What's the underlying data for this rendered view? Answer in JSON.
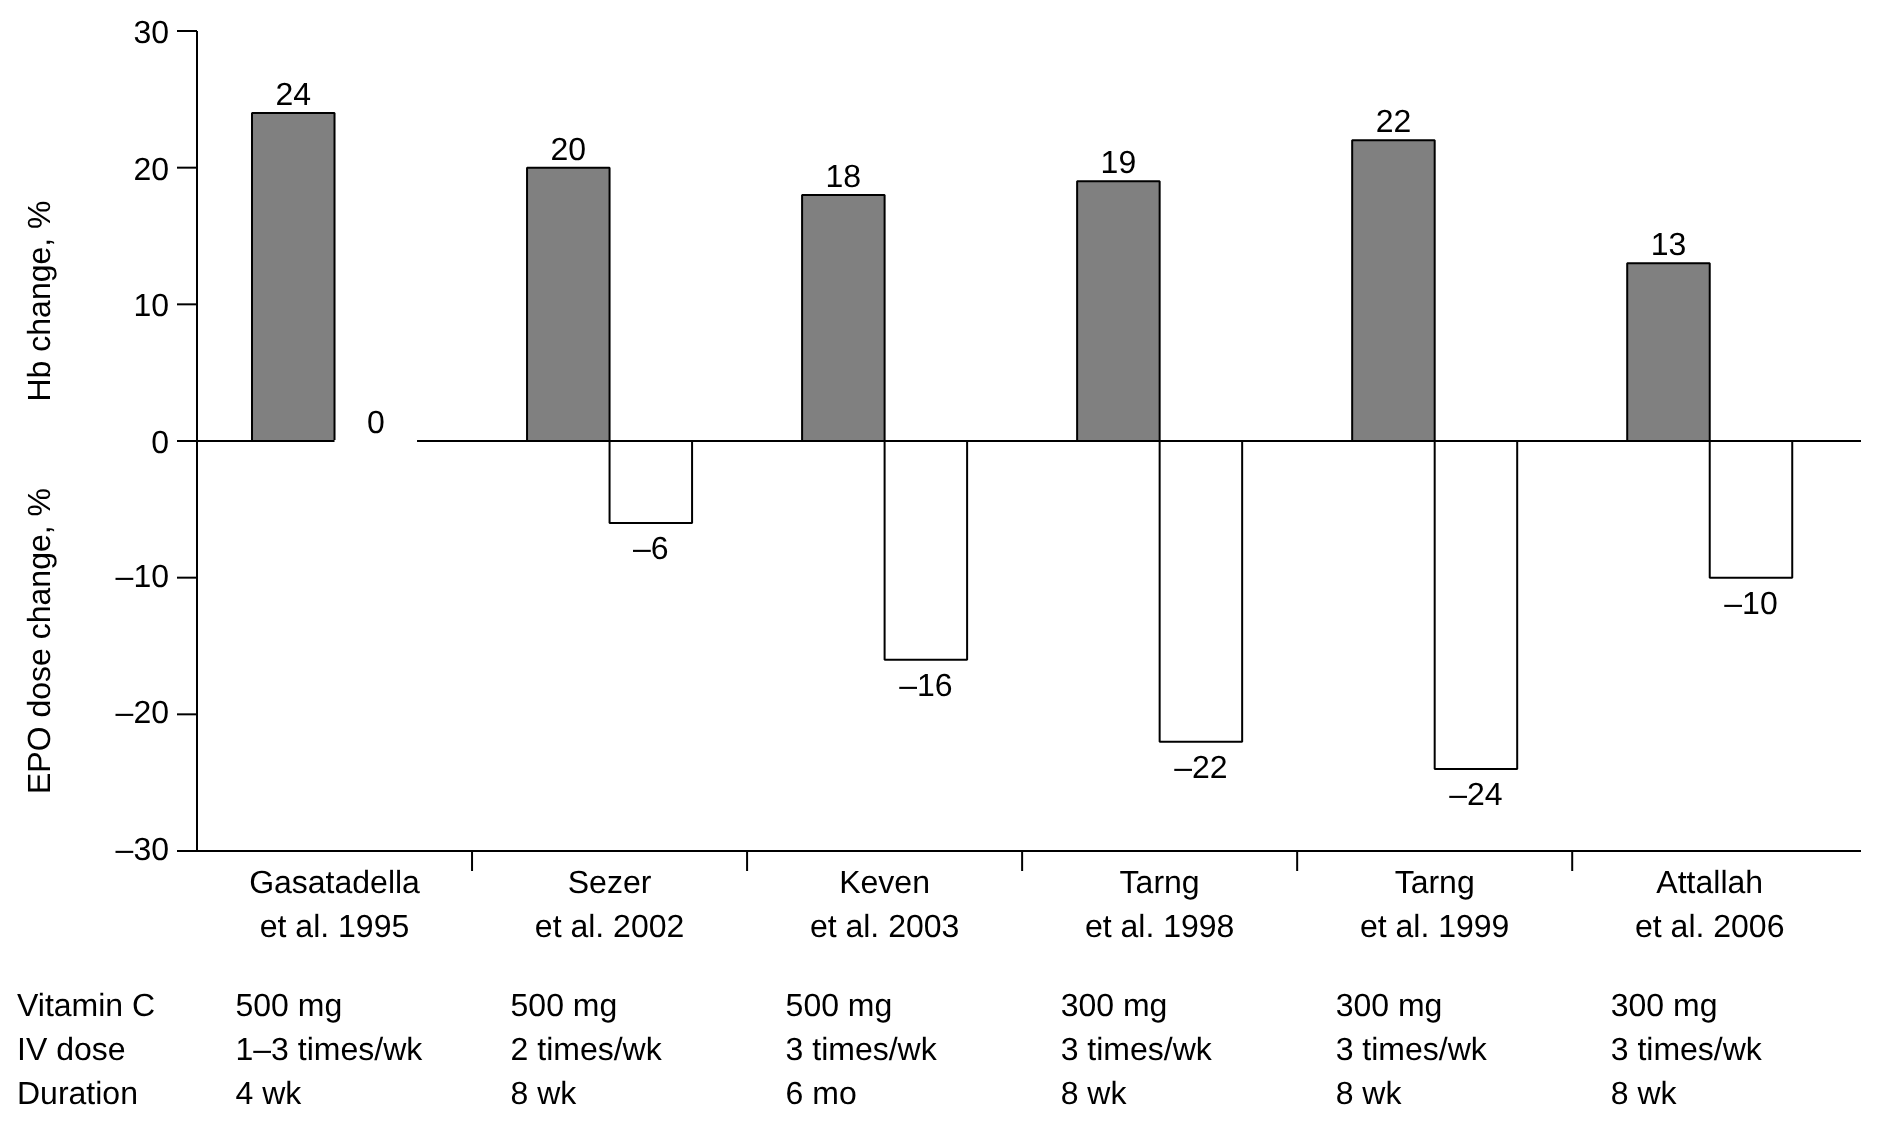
{
  "chart_data": {
    "type": "bar",
    "ylabel": "Hb change, %",
    "categories": [
      "Gasatadella\net al. 1995",
      "Sezer\net al. 2002",
      "Keven\net al. 2003",
      "Tarng\net al. 1998",
      "Tarng\net al. 1999",
      "Attallah\net al. 2006"
    ],
    "series": [
      {
        "color": "#808080",
        "values": [
          24,
          20,
          18,
          19,
          22,
          13
        ],
        "value_labels": [
          "24",
          "20",
          "18",
          "19",
          "22",
          "13"
        ]
      },
      {
        "color": "#ffffff",
        "values": [
          0,
          -6,
          -16,
          -22,
          -24,
          -10
        ],
        "value_labels": [
          "0",
          "–6",
          "–16",
          "–22",
          "–24",
          "–10"
        ]
      }
    ],
    "ylim": [
      -30,
      30
    ],
    "yticks": [
      {
        "value": -30,
        "label": "–30"
      },
      {
        "value": -20,
        "label": "–20"
      },
      {
        "value": -10,
        "label": "–10"
      },
      0,
      10,
      20,
      30
    ],
    "grid": false,
    "ref_lines": [
      {
        "axis": "y",
        "value": 0
      }
    ],
    "annotations": [
      "EPO dose change, %",
      "Vitamin C",
      "500 mg",
      "500 mg",
      "500 mg",
      "300 mg",
      "300 mg",
      "300 mg",
      "IV dose",
      "1–3 times/wk",
      "2 times/wk",
      "3 times/wk",
      "3 times/wk",
      "3 times/wk",
      "3 times/wk",
      "Duration",
      "4 wk",
      "8 wk",
      "6 mo",
      "8 wk",
      "8 wk",
      "8 wk"
    ]
  }
}
